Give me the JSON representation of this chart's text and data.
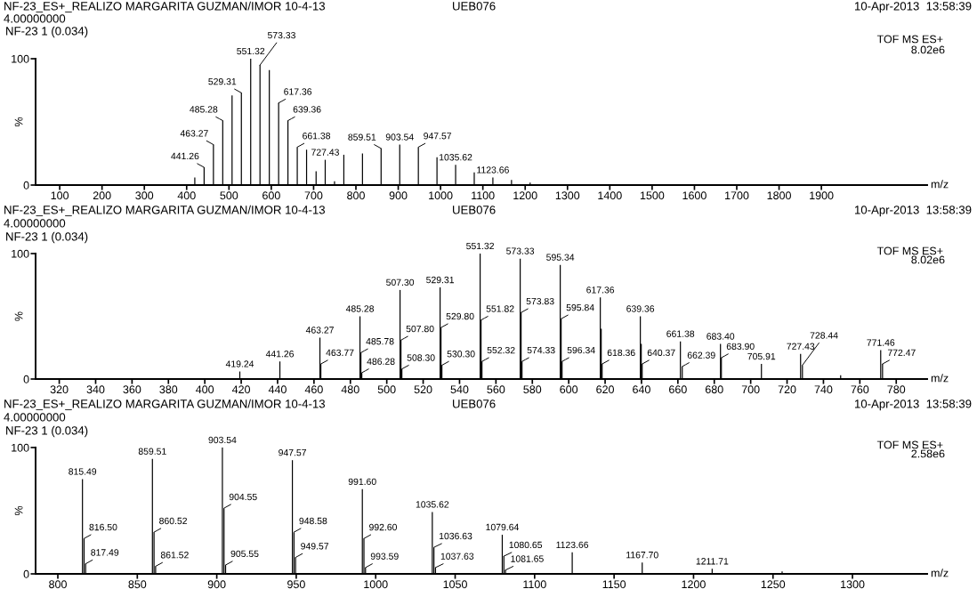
{
  "chart_data": [
    {
      "type": "bar",
      "title": "NF-23_ES+_REALIZO MARGARITA GUZMAN/IMOR 10-4-13",
      "xlabel": "m/z",
      "ylabel": "%",
      "color": "#000000",
      "annotations": [
        "UEB076",
        "10-Apr-2013  13:58:39",
        "4.00000000",
        "NF-23 1 (0.034)",
        "TOF MS ES+",
        "8.02e6",
        {
          "text": "441.26",
          "x": 441.26,
          "y": 14
        },
        {
          "text": "463.27",
          "x": 463.27,
          "y": 32
        },
        {
          "text": "485.28",
          "x": 485.28,
          "y": 51
        },
        {
          "text": "529.31",
          "x": 529.31,
          "y": 73
        },
        {
          "text": "551.32",
          "x": 551.32,
          "y": 100
        },
        {
          "text": "573.33",
          "x": 573.33,
          "y": 95
        },
        {
          "text": "617.36",
          "x": 617.36,
          "y": 65
        },
        {
          "text": "639.36",
          "x": 639.36,
          "y": 51
        },
        {
          "text": "661.38",
          "x": 661.38,
          "y": 30
        },
        {
          "text": "727.43",
          "x": 727.43,
          "y": 20
        },
        {
          "text": "859.51",
          "x": 859.51,
          "y": 29
        },
        {
          "text": "903.54",
          "x": 903.54,
          "y": 32
        },
        {
          "text": "947.57",
          "x": 947.57,
          "y": 30
        },
        {
          "text": "1035.62",
          "x": 1035.62,
          "y": 16
        },
        {
          "text": "1123.66",
          "x": 1123.66,
          "y": 6
        }
      ],
      "x": [
        419.24,
        441.26,
        463.27,
        485.28,
        507.3,
        529.31,
        551.32,
        573.33,
        595.34,
        617.36,
        639.36,
        661.38,
        683.4,
        705.91,
        727.43,
        749.45,
        771.46,
        815.49,
        859.51,
        903.54,
        947.57,
        991.6,
        1035.62,
        1079.64,
        1123.66,
        1167.7,
        1211.71
      ],
      "values": [
        6,
        14,
        32,
        51,
        71,
        73,
        100,
        95,
        91,
        65,
        51,
        30,
        28,
        11,
        20,
        3,
        24,
        25,
        29,
        32,
        30,
        22,
        16,
        10,
        6,
        4,
        2
      ],
      "xlim": [
        43,
        2150
      ],
      "xticks": [
        100,
        200,
        300,
        400,
        500,
        600,
        700,
        800,
        900,
        1000,
        1100,
        1200,
        1300,
        1400,
        1500,
        1600,
        1700,
        1800,
        1900
      ],
      "ylim": [
        0,
        100
      ],
      "yticks": [
        0,
        100
      ]
    },
    {
      "type": "bar",
      "title": "NF-23_ES+_REALIZO MARGARITA GUZMAN/IMOR 10-4-13",
      "xlabel": "m/z",
      "ylabel": "%",
      "color": "#000000",
      "annotations": [
        "UEB076",
        "10-Apr-2013  13:58:39",
        "4.00000000",
        "NF-23 1 (0.034)",
        "TOF MS ES+",
        "8.02e6",
        {
          "text": "419.24",
          "x": 419.24,
          "y": 6
        },
        {
          "text": "441.26",
          "x": 441.26,
          "y": 14
        },
        {
          "text": "463.27",
          "x": 463.27,
          "y": 33
        },
        {
          "text": "463.77",
          "x": 463.77,
          "y": 12
        },
        {
          "text": "485.28",
          "x": 485.28,
          "y": 50
        },
        {
          "text": "485.78",
          "x": 485.78,
          "y": 21
        },
        {
          "text": "486.28",
          "x": 486.28,
          "y": 5
        },
        {
          "text": "507.30",
          "x": 507.3,
          "y": 71
        },
        {
          "text": "507.80",
          "x": 507.8,
          "y": 31
        },
        {
          "text": "508.30",
          "x": 508.3,
          "y": 8
        },
        {
          "text": "529.31",
          "x": 529.31,
          "y": 73
        },
        {
          "text": "529.80",
          "x": 529.8,
          "y": 41
        },
        {
          "text": "530.30",
          "x": 530.3,
          "y": 11
        },
        {
          "text": "551.32",
          "x": 551.32,
          "y": 100
        },
        {
          "text": "551.82",
          "x": 551.82,
          "y": 47
        },
        {
          "text": "552.32",
          "x": 552.32,
          "y": 14
        },
        {
          "text": "573.33",
          "x": 573.33,
          "y": 96
        },
        {
          "text": "573.83",
          "x": 573.83,
          "y": 53
        },
        {
          "text": "574.33",
          "x": 574.33,
          "y": 14
        },
        {
          "text": "595.34",
          "x": 595.34,
          "y": 91
        },
        {
          "text": "595.84",
          "x": 595.84,
          "y": 48
        },
        {
          "text": "596.34",
          "x": 596.34,
          "y": 14
        },
        {
          "text": "617.36",
          "x": 617.36,
          "y": 65
        },
        {
          "text": "618.36",
          "x": 618.36,
          "y": 12
        },
        {
          "text": "639.36",
          "x": 639.36,
          "y": 50
        },
        {
          "text": "640.37",
          "x": 640.37,
          "y": 12
        },
        {
          "text": "661.38",
          "x": 661.38,
          "y": 30
        },
        {
          "text": "662.39",
          "x": 662.39,
          "y": 10
        },
        {
          "text": "683.40",
          "x": 683.4,
          "y": 28
        },
        {
          "text": "683.90",
          "x": 683.9,
          "y": 17
        },
        {
          "text": "705.91",
          "x": 705.91,
          "y": 12
        },
        {
          "text": "727.43",
          "x": 727.43,
          "y": 20
        },
        {
          "text": "728.44",
          "x": 728.44,
          "y": 11
        },
        {
          "text": "771.46",
          "x": 771.46,
          "y": 23
        },
        {
          "text": "772.47",
          "x": 772.47,
          "y": 12
        }
      ],
      "x": [
        419.24,
        441.26,
        463.27,
        463.77,
        485.28,
        485.78,
        486.28,
        507.3,
        507.8,
        508.3,
        529.31,
        529.8,
        530.3,
        551.32,
        551.82,
        552.32,
        573.33,
        573.83,
        574.33,
        595.34,
        595.84,
        596.34,
        617.36,
        617.86,
        618.36,
        639.36,
        639.86,
        640.37,
        661.38,
        662.39,
        683.4,
        683.9,
        705.91,
        727.43,
        728.44,
        749.45,
        771.46,
        772.47
      ],
      "values": [
        6,
        14,
        33,
        12,
        50,
        21,
        5,
        71,
        31,
        8,
        73,
        41,
        11,
        100,
        47,
        14,
        96,
        53,
        14,
        91,
        48,
        14,
        65,
        40,
        12,
        50,
        28,
        12,
        30,
        10,
        28,
        17,
        12,
        20,
        11,
        3,
        23,
        12
      ],
      "xlim": [
        307,
        797
      ],
      "xticks": [
        320,
        340,
        360,
        380,
        400,
        420,
        440,
        460,
        480,
        500,
        520,
        540,
        560,
        580,
        600,
        620,
        640,
        660,
        680,
        700,
        720,
        740,
        760,
        780
      ],
      "ylim": [
        0,
        100
      ],
      "yticks": [
        0,
        100
      ]
    },
    {
      "type": "bar",
      "title": "NF-23_ES+_REALIZO MARGARITA GUZMAN/IMOR 10-4-13",
      "xlabel": "m/z",
      "ylabel": "%",
      "color": "#000000",
      "annotations": [
        "UEB076",
        "10-Apr-2013  13:58:39",
        "4.00000000",
        "NF-23 1 (0.034)",
        "TOF MS ES+",
        "2.58e6",
        {
          "text": "815.49",
          "x": 815.49,
          "y": 75
        },
        {
          "text": "816.50",
          "x": 816.5,
          "y": 28
        },
        {
          "text": "817.49",
          "x": 817.49,
          "y": 8
        },
        {
          "text": "859.51",
          "x": 859.51,
          "y": 91
        },
        {
          "text": "860.52",
          "x": 860.52,
          "y": 33
        },
        {
          "text": "861.52",
          "x": 861.52,
          "y": 6
        },
        {
          "text": "903.54",
          "x": 903.54,
          "y": 100
        },
        {
          "text": "904.55",
          "x": 904.55,
          "y": 52
        },
        {
          "text": "905.55",
          "x": 905.55,
          "y": 7
        },
        {
          "text": "947.57",
          "x": 947.57,
          "y": 90
        },
        {
          "text": "948.58",
          "x": 948.58,
          "y": 33
        },
        {
          "text": "949.57",
          "x": 949.57,
          "y": 13
        },
        {
          "text": "991.60",
          "x": 991.6,
          "y": 67
        },
        {
          "text": "992.60",
          "x": 992.6,
          "y": 28
        },
        {
          "text": "993.59",
          "x": 993.59,
          "y": 5
        },
        {
          "text": "1035.62",
          "x": 1035.62,
          "y": 49
        },
        {
          "text": "1036.63",
          "x": 1036.63,
          "y": 21
        },
        {
          "text": "1037.63",
          "x": 1037.63,
          "y": 5
        },
        {
          "text": "1079.64",
          "x": 1079.64,
          "y": 31
        },
        {
          "text": "1080.65",
          "x": 1080.65,
          "y": 14
        },
        {
          "text": "1081.65",
          "x": 1081.65,
          "y": 3
        },
        {
          "text": "1123.66",
          "x": 1123.66,
          "y": 17
        },
        {
          "text": "1167.70",
          "x": 1167.7,
          "y": 9
        },
        {
          "text": "1211.71",
          "x": 1211.71,
          "y": 4
        }
      ],
      "x": [
        815.49,
        816.5,
        817.49,
        859.51,
        860.52,
        861.52,
        903.54,
        904.55,
        905.55,
        947.57,
        948.58,
        949.57,
        991.6,
        992.6,
        993.59,
        1035.62,
        1036.63,
        1037.63,
        1079.64,
        1080.65,
        1081.65,
        1123.66,
        1167.7,
        1211.71,
        1255.73
      ],
      "values": [
        75,
        28,
        8,
        91,
        33,
        6,
        100,
        52,
        7,
        90,
        33,
        13,
        67,
        28,
        5,
        49,
        21,
        5,
        31,
        14,
        3,
        17,
        9,
        4,
        2
      ],
      "xlim": [
        786,
        1347
      ],
      "xticks": [
        800,
        850,
        900,
        950,
        1000,
        1050,
        1100,
        1150,
        1200,
        1250,
        1300
      ],
      "ylim": [
        0,
        100
      ],
      "yticks": [
        0,
        100
      ]
    }
  ]
}
